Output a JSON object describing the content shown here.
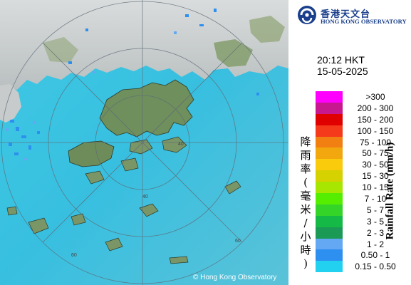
{
  "map": {
    "copyright": "© Hong Kong Observatory",
    "ring_labels": [
      "40",
      "40",
      "60",
      "60"
    ]
  },
  "header": {
    "logo_chinese": "香港天文台",
    "logo_english": "HONG KONG OBSERVATORY",
    "time": "20:12 HKT",
    "date": "15-05-2025"
  },
  "legend": {
    "title_chinese": "降雨率(毫米/小時)",
    "title_english": "Rainfall Rate (mm/h)",
    "items": [
      {
        "label": ">300",
        "color": "#ff00ff"
      },
      {
        "label": "200 - 300",
        "color": "#c8188f"
      },
      {
        "label": "150 - 200",
        "color": "#e00000"
      },
      {
        "label": "100 - 150",
        "color": "#f53a1b"
      },
      {
        "label": "75 - 100",
        "color": "#f27f12"
      },
      {
        "label": "50 - 75",
        "color": "#f2a70f"
      },
      {
        "label": "30 - 50",
        "color": "#f9cb0c"
      },
      {
        "label": "15 - 30",
        "color": "#d6d100"
      },
      {
        "label": "10 - 15",
        "color": "#a6e600"
      },
      {
        "label": "7 - 10",
        "color": "#55ee00"
      },
      {
        "label": "5 - 7",
        "color": "#34d428"
      },
      {
        "label": "3 - 5",
        "color": "#14ba45"
      },
      {
        "label": "2 - 3",
        "color": "#1a9a55"
      },
      {
        "label": "1 - 2",
        "color": "#64a8f4"
      },
      {
        "label": "0.50 - 1",
        "color": "#2d8ff0"
      },
      {
        "label": "0.15 - 0.50",
        "color": "#22d0f0"
      }
    ]
  }
}
